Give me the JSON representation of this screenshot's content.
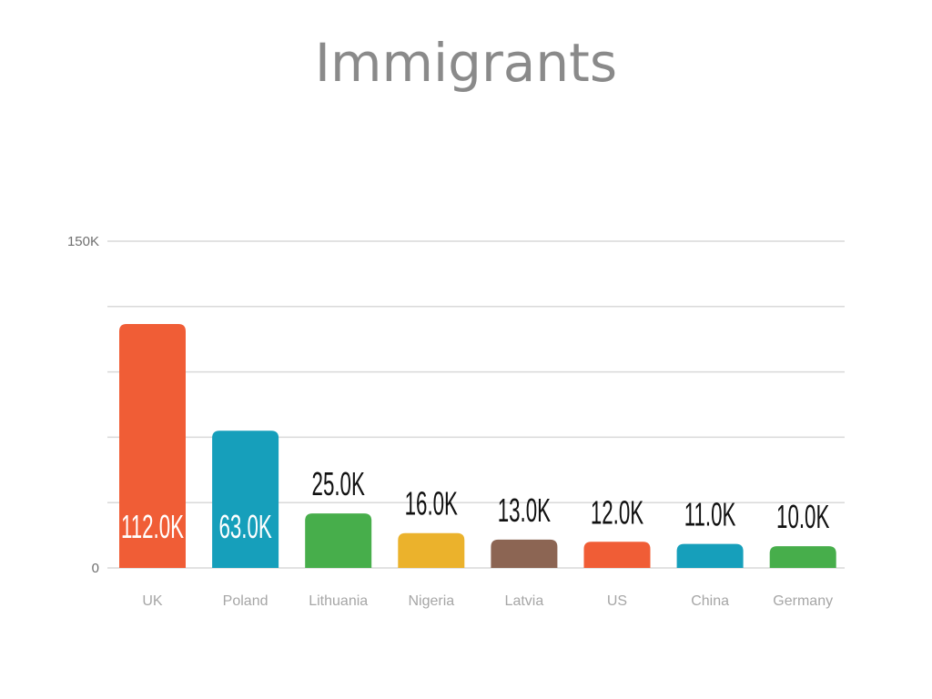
{
  "chart_data": {
    "type": "bar",
    "title": "Immigrants",
    "categories": [
      "UK",
      "Poland",
      "Lithuania",
      "Nigeria",
      "Latvia",
      "US",
      "China",
      "Germany"
    ],
    "values": [
      112000,
      63000,
      25000,
      16000,
      13000,
      12000,
      11000,
      10000
    ],
    "data_labels": [
      "112.0K",
      "63.0K",
      "25.0K",
      "16.0K",
      "13.0K",
      "12.0K",
      "11.0K",
      "10.0K"
    ],
    "colors": [
      "#f05d36",
      "#169fbb",
      "#47ae4b",
      "#ebb22c",
      "#8c6553",
      "#f05d36",
      "#169fbb",
      "#47ae4b"
    ],
    "ylim": [
      0,
      150000
    ],
    "y_ticks": [
      {
        "value": 0,
        "label": "0"
      },
      {
        "value": 150000,
        "label": "150K"
      }
    ],
    "gridlines": [
      0,
      30000,
      60000,
      90000,
      120000,
      150000
    ],
    "grid": true,
    "legend": "none",
    "xlabel": "",
    "ylabel": ""
  }
}
